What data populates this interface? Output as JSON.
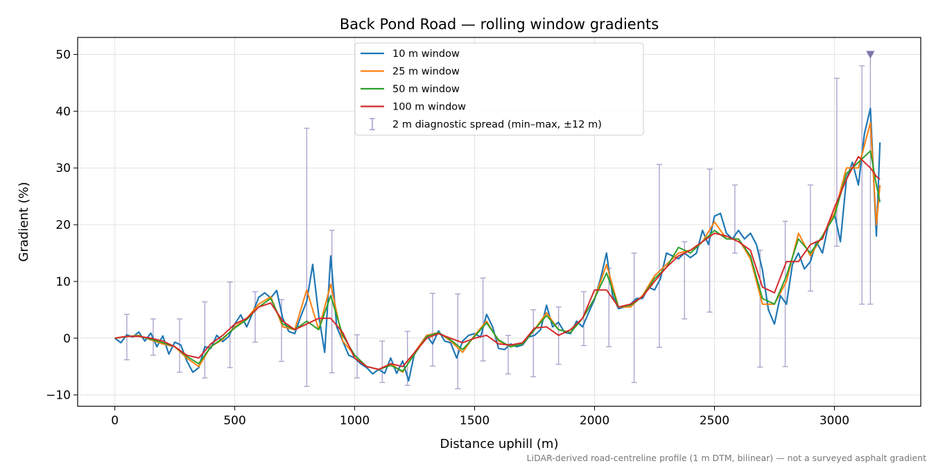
{
  "chart_data": {
    "type": "line",
    "title": "Back Pond Road — rolling window gradients",
    "xlabel": "Distance uphill (m)",
    "ylabel": "Gradient (%)",
    "footnote": "LiDAR-derived road-centreline profile (1 m DTM, bilinear) — not a surveyed asphalt gradient",
    "xlim": [
      -155,
      3360
    ],
    "ylim": [
      -12,
      53
    ],
    "xticks": [
      0,
      500,
      1000,
      1500,
      2000,
      2500,
      3000
    ],
    "xtick_labels": [
      "0",
      "500",
      "1000",
      "1500",
      "2000",
      "2500",
      "3000"
    ],
    "yticks": [
      -10,
      0,
      10,
      20,
      30,
      40,
      50
    ],
    "ytick_labels": [
      "−10",
      "0",
      "10",
      "20",
      "30",
      "40",
      "50"
    ],
    "grid": true,
    "legend_position": "top-center",
    "series": [
      {
        "name": "10 m window",
        "color": "#1f77b4",
        "x": [
          0,
          25,
          50,
          75,
          100,
          125,
          150,
          175,
          200,
          225,
          250,
          275,
          300,
          325,
          350,
          375,
          400,
          425,
          450,
          475,
          500,
          525,
          550,
          575,
          600,
          625,
          650,
          675,
          700,
          725,
          750,
          775,
          800,
          825,
          850,
          875,
          900,
          925,
          950,
          975,
          1000,
          1025,
          1050,
          1075,
          1100,
          1125,
          1150,
          1175,
          1200,
          1225,
          1250,
          1275,
          1300,
          1325,
          1350,
          1375,
          1400,
          1425,
          1450,
          1475,
          1500,
          1525,
          1550,
          1575,
          1600,
          1625,
          1650,
          1675,
          1700,
          1725,
          1750,
          1775,
          1800,
          1825,
          1850,
          1875,
          1900,
          1925,
          1950,
          1975,
          2000,
          2025,
          2050,
          2075,
          2100,
          2125,
          2150,
          2175,
          2200,
          2225,
          2250,
          2275,
          2300,
          2325,
          2350,
          2375,
          2400,
          2425,
          2450,
          2475,
          2500,
          2525,
          2550,
          2575,
          2600,
          2625,
          2650,
          2675,
          2700,
          2725,
          2750,
          2775,
          2800,
          2825,
          2850,
          2875,
          2900,
          2925,
          2950,
          2975,
          3000,
          3025,
          3050,
          3075,
          3100,
          3125,
          3150,
          3175,
          3190
        ],
        "y": [
          0,
          -0.8,
          0.6,
          0.2,
          1.1,
          -0.5,
          0.9,
          -1.5,
          0.4,
          -2.8,
          -0.7,
          -1.2,
          -4,
          -6,
          -5.2,
          -1.5,
          -1.8,
          0.5,
          -0.6,
          0.3,
          2.5,
          4.1,
          2,
          4.5,
          7.2,
          8,
          7.1,
          8.4,
          3.5,
          1.2,
          0.8,
          3.8,
          6.5,
          13,
          4,
          -2.5,
          14.5,
          2,
          -0.5,
          -3,
          -3.5,
          -4.5,
          -5.2,
          -6.3,
          -5.5,
          -6.2,
          -3.5,
          -6.2,
          -4,
          -7.5,
          -2.5,
          -1,
          0.5,
          -1,
          1.3,
          -0.5,
          -0.8,
          -3.5,
          -0.5,
          0.5,
          0.8,
          0.2,
          4.2,
          2,
          -1.8,
          -2,
          -1,
          -1.5,
          -1.2,
          0.2,
          0.5,
          1.5,
          5.8,
          2,
          2.8,
          1,
          0.8,
          3,
          2,
          4.5,
          6.8,
          10.5,
          15,
          7.5,
          5.2,
          5.5,
          6,
          7,
          7,
          9,
          8.5,
          10.5,
          15,
          14.5,
          14,
          15,
          14.2,
          15,
          19,
          16.5,
          21.5,
          22,
          18.5,
          17.5,
          19,
          17.5,
          18.5,
          16.5,
          12,
          5,
          2.5,
          7.5,
          6,
          13,
          15,
          12.2,
          13.5,
          17,
          15,
          20,
          22,
          17,
          28,
          31,
          27,
          36,
          40.5,
          18,
          34.5
        ]
      },
      {
        "name": "25 m window",
        "color": "#ff7f0e",
        "x": [
          0,
          50,
          100,
          150,
          200,
          250,
          300,
          350,
          400,
          450,
          500,
          550,
          600,
          650,
          700,
          750,
          800,
          850,
          900,
          950,
          1000,
          1050,
          1100,
          1150,
          1200,
          1250,
          1300,
          1350,
          1400,
          1450,
          1500,
          1550,
          1600,
          1650,
          1700,
          1750,
          1800,
          1850,
          1900,
          1950,
          2000,
          2050,
          2100,
          2150,
          2200,
          2250,
          2300,
          2350,
          2400,
          2450,
          2500,
          2550,
          2600,
          2650,
          2700,
          2750,
          2800,
          2850,
          2900,
          2950,
          3000,
          3050,
          3100,
          3150,
          3175,
          3190
        ],
        "y": [
          0,
          0.3,
          0.5,
          -0.3,
          -1,
          -1.5,
          -3.5,
          -5,
          -1.5,
          -0.2,
          2,
          3.5,
          6,
          7.3,
          2,
          1.5,
          8.5,
          1.5,
          9.5,
          -0.5,
          -3,
          -5,
          -5.5,
          -4.5,
          -6,
          -2.5,
          0.5,
          1,
          -0.5,
          -2.5,
          0.5,
          3,
          -0.5,
          -1.5,
          -1,
          1.5,
          4.5,
          1.5,
          1,
          3.5,
          7,
          13,
          5.5,
          5.5,
          7.5,
          11,
          13,
          15,
          15.5,
          17,
          20.5,
          17.5,
          17.5,
          14,
          6,
          6,
          10,
          18.5,
          14.5,
          18,
          22,
          30,
          30,
          38,
          20,
          27
        ]
      },
      {
        "name": "50 m window",
        "color": "#2ca02c",
        "x": [
          0,
          50,
          100,
          150,
          200,
          250,
          300,
          350,
          400,
          450,
          500,
          550,
          600,
          650,
          700,
          750,
          800,
          850,
          900,
          950,
          1000,
          1050,
          1100,
          1150,
          1200,
          1250,
          1300,
          1350,
          1400,
          1450,
          1500,
          1550,
          1600,
          1650,
          1700,
          1750,
          1800,
          1850,
          1900,
          1950,
          2000,
          2050,
          2100,
          2150,
          2200,
          2250,
          2300,
          2350,
          2400,
          2450,
          2500,
          2550,
          2600,
          2650,
          2700,
          2750,
          2800,
          2850,
          2900,
          2950,
          3000,
          3050,
          3100,
          3150,
          3175,
          3190
        ],
        "y": [
          0,
          0.3,
          0.4,
          -0.2,
          -0.8,
          -1.5,
          -3.2,
          -4.5,
          -1.5,
          0,
          1.8,
          3.3,
          5.5,
          7,
          2.5,
          1.5,
          3,
          1.5,
          7.5,
          0.5,
          -3,
          -5,
          -5.5,
          -4.8,
          -5.8,
          -2.8,
          0.3,
          1,
          -0.3,
          -2,
          0.3,
          2.7,
          -0.3,
          -1.5,
          -1,
          1.5,
          4,
          1.5,
          1,
          3.5,
          7,
          11.5,
          5.5,
          5.8,
          7.3,
          10.5,
          12.5,
          16,
          15,
          17,
          19,
          17.5,
          17.5,
          14.5,
          7,
          6,
          11,
          17.5,
          15,
          18,
          21.5,
          29,
          31,
          33,
          27,
          24
        ]
      },
      {
        "name": "100 m window",
        "color": "#d62728",
        "x": [
          0,
          50,
          100,
          150,
          200,
          250,
          300,
          350,
          400,
          450,
          500,
          550,
          600,
          650,
          700,
          750,
          800,
          850,
          900,
          950,
          1000,
          1050,
          1100,
          1150,
          1200,
          1250,
          1300,
          1350,
          1400,
          1450,
          1500,
          1550,
          1600,
          1650,
          1700,
          1750,
          1800,
          1850,
          1900,
          1950,
          2000,
          2050,
          2100,
          2150,
          2200,
          2250,
          2300,
          2350,
          2400,
          2450,
          2500,
          2550,
          2600,
          2650,
          2700,
          2750,
          2800,
          2850,
          2900,
          2950,
          3000,
          3050,
          3100,
          3150,
          3175,
          3190
        ],
        "y": [
          0,
          0.3,
          0.3,
          0,
          -0.5,
          -1.5,
          -3,
          -3.5,
          -1,
          0.5,
          2.5,
          3.5,
          5.5,
          6.2,
          3,
          1.5,
          2.5,
          3.5,
          3.5,
          1,
          -3.5,
          -5,
          -5.5,
          -4.5,
          -5,
          -2.5,
          0,
          0.8,
          0,
          -0.8,
          0,
          0.5,
          -1,
          -1.2,
          -0.8,
          1.8,
          2,
          0.5,
          1.5,
          3.5,
          8.5,
          8.5,
          5.5,
          6,
          7.3,
          10,
          12.5,
          14.5,
          15.5,
          17,
          18.5,
          18,
          17,
          15.5,
          9,
          8,
          13.5,
          13.5,
          16.5,
          17.5,
          23,
          28,
          32,
          30,
          28.5,
          28
        ]
      }
    ],
    "errorbars": {
      "name": "2 m diagnostic spread (min–max, ±12 m)",
      "color": "#9e95c4",
      "x": [
        50,
        160,
        270,
        375,
        480,
        585,
        695,
        800,
        905,
        1010,
        1115,
        1220,
        1325,
        1430,
        1535,
        1640,
        1745,
        1850,
        1955,
        2060,
        2165,
        2270,
        2375,
        2480,
        2585,
        2690,
        2795,
        2900,
        3010,
        3115,
        3150
      ],
      "lo": [
        -3.8,
        -3,
        -6,
        -7,
        -5.2,
        -0.7,
        -4.1,
        -8.5,
        -6.1,
        -7,
        -7.8,
        -8.3,
        -4.9,
        -8.9,
        -4,
        -6.3,
        -6.8,
        -4.6,
        -1.3,
        -1.5,
        -7.8,
        -1.6,
        3.4,
        4.6,
        15,
        -5.1,
        -5,
        8.3,
        16.2,
        6,
        6
      ],
      "hi": [
        4.2,
        3.4,
        3.4,
        6.4,
        9.9,
        8.2,
        6.8,
        37,
        19,
        0.6,
        -0.5,
        1.2,
        7.9,
        7.8,
        10.6,
        0.5,
        5,
        5.5,
        8.2,
        12.3,
        15,
        30.6,
        17,
        29.8,
        27,
        15.5,
        20.6,
        27,
        45.8,
        48,
        50
      ]
    },
    "annotations": [
      {
        "type": "marker",
        "shape": "down-triangle",
        "x": 3150,
        "y": 50,
        "color": "#7e74a8"
      }
    ]
  }
}
